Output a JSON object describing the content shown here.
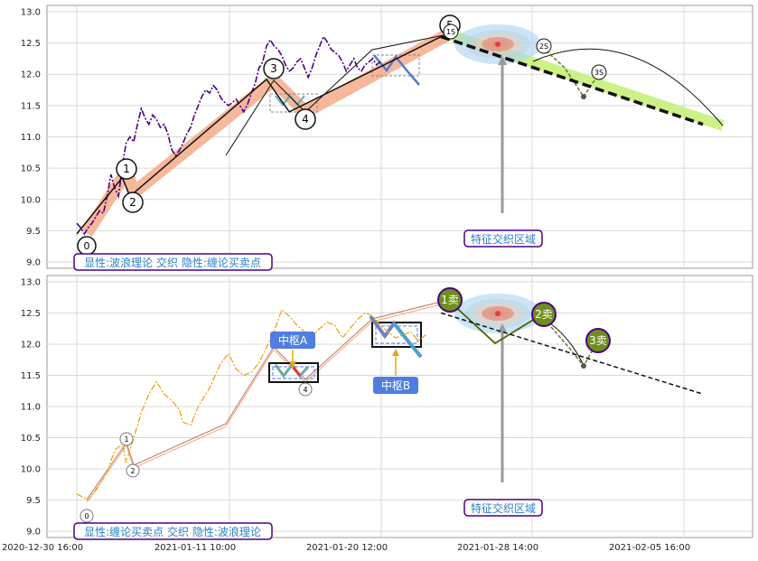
{
  "colors": {
    "grid": "#d8d8d8",
    "frame": "#999999",
    "price_top": "#4b0082",
    "price_bottom": "#e6a817",
    "wave_band": "#f4a582",
    "trend_band": "#c8f07a",
    "center_blue": "#a8d4f0",
    "center_mid": "#f0c0a0",
    "center_red": "#e04040",
    "note_border": "#4b0082",
    "note_text": "#2a7fc8",
    "zhongshu_fill": "#4f7de0",
    "sell_fill": "#6e8f1e",
    "label_purple": "#4b0082"
  },
  "x_axis": {
    "ticks": [
      "2020-12-30 16:00",
      "2021-01-11 10:00",
      "2021-01-20 12:00",
      "2021-01-28 14:00",
      "2021-02-05 16:00"
    ]
  },
  "chart_data": [
    {
      "type": "line",
      "ylim": [
        8.9,
        13.1
      ],
      "y_ticks": [
        9.0,
        9.5,
        10.0,
        10.5,
        11.0,
        11.5,
        12.0,
        12.5,
        13.0
      ],
      "legend_text": "显性:波浪理论 交织 隐性:缠论买卖点",
      "region_label": "特征交织区域",
      "series": [
        {
          "role": "price",
          "points": [
            [
              0,
              9.62
            ],
            [
              1,
              9.55
            ],
            [
              2,
              9.45
            ],
            [
              3,
              9.55
            ],
            [
              4,
              9.62
            ],
            [
              5,
              9.72
            ],
            [
              6,
              9.82
            ],
            [
              7,
              9.78
            ],
            [
              8,
              10.05
            ],
            [
              9,
              10.4
            ],
            [
              10,
              10.18
            ],
            [
              11,
              10.05
            ],
            [
              12,
              10.55
            ],
            [
              13,
              10.9
            ],
            [
              14,
              11.0
            ],
            [
              15,
              10.92
            ],
            [
              16,
              11.2
            ],
            [
              17,
              11.45
            ],
            [
              18,
              11.3
            ],
            [
              19,
              11.2
            ],
            [
              20,
              11.35
            ],
            [
              21,
              11.28
            ],
            [
              22,
              11.15
            ],
            [
              23,
              11.2
            ],
            [
              24,
              11.05
            ],
            [
              25,
              10.8
            ],
            [
              26,
              10.7
            ],
            [
              27,
              10.78
            ],
            [
              28,
              10.9
            ],
            [
              29,
              11.05
            ],
            [
              30,
              11.15
            ],
            [
              31,
              11.35
            ],
            [
              32,
              11.5
            ],
            [
              33,
              11.65
            ],
            [
              34,
              11.75
            ],
            [
              35,
              11.7
            ],
            [
              36,
              11.82
            ],
            [
              37,
              11.75
            ],
            [
              38,
              11.62
            ],
            [
              39,
              11.55
            ],
            [
              40,
              11.5
            ],
            [
              41,
              11.55
            ],
            [
              42,
              11.6
            ],
            [
              43,
              11.5
            ],
            [
              44,
              11.4
            ],
            [
              45,
              11.52
            ],
            [
              46,
              11.7
            ],
            [
              47,
              11.85
            ],
            [
              48,
              12.1
            ],
            [
              49,
              12.2
            ],
            [
              50,
              12.45
            ],
            [
              51,
              12.55
            ],
            [
              52,
              12.45
            ],
            [
              53,
              12.4
            ],
            [
              54,
              12.3
            ],
            [
              55,
              12.15
            ],
            [
              56,
              12.05
            ],
            [
              57,
              12.1
            ],
            [
              58,
              12.2
            ],
            [
              59,
              12.25
            ],
            [
              60,
              12.1
            ],
            [
              61,
              11.95
            ],
            [
              62,
              12.1
            ],
            [
              63,
              12.3
            ],
            [
              64,
              12.45
            ],
            [
              65,
              12.6
            ],
            [
              66,
              12.52
            ],
            [
              67,
              12.4
            ],
            [
              68,
              12.35
            ],
            [
              69,
              12.3
            ],
            [
              70,
              12.2
            ],
            [
              71,
              12.05
            ],
            [
              72,
              12.15
            ],
            [
              73,
              12.25
            ],
            [
              74,
              12.1
            ],
            [
              75,
              12.05
            ],
            [
              76,
              12.15
            ],
            [
              77,
              12.2
            ],
            [
              78,
              12.25
            ],
            [
              79,
              12.15
            ],
            [
              80,
              12.2
            ]
          ]
        },
        {
          "role": "wave",
          "points": [
            [
              0,
              9.45
            ],
            [
              12,
              10.35
            ],
            [
              14,
              10.05
            ],
            [
              50,
              11.92
            ],
            [
              56,
              11.4
            ],
            [
              96,
              12.6
            ]
          ]
        },
        {
          "role": "forecast",
          "points": [
            [
              96,
              12.6
            ],
            [
              165,
              11.2
            ]
          ]
        }
      ],
      "wave_labels": [
        "0",
        "1",
        "2",
        "3",
        "4",
        "5",
        "1S",
        "2S",
        "3S"
      ]
    },
    {
      "type": "line",
      "ylim": [
        8.9,
        13.1
      ],
      "y_ticks": [
        9.0,
        9.5,
        10.0,
        10.5,
        11.0,
        11.5,
        12.0,
        12.5,
        13.0
      ],
      "legend_text": "显性:缠论买卖点 交织 隐性:波浪理论",
      "region_label": "特征交织区域",
      "series": [
        {
          "role": "price",
          "points": [
            [
              0,
              9.6
            ],
            [
              3,
              9.5
            ],
            [
              5,
              9.65
            ],
            [
              8,
              9.95
            ],
            [
              10,
              10.3
            ],
            [
              12,
              10.4
            ],
            [
              13,
              10.1
            ],
            [
              15,
              10.5
            ],
            [
              17,
              10.9
            ],
            [
              19,
              11.2
            ],
            [
              21,
              11.4
            ],
            [
              23,
              11.2
            ],
            [
              25,
              11.1
            ],
            [
              27,
              10.95
            ],
            [
              28,
              10.75
            ],
            [
              30,
              10.7
            ],
            [
              32,
              11.0
            ],
            [
              35,
              11.3
            ],
            [
              38,
              11.7
            ],
            [
              40,
              11.85
            ],
            [
              42,
              11.6
            ],
            [
              44,
              11.5
            ],
            [
              46,
              11.55
            ],
            [
              48,
              11.7
            ],
            [
              50,
              11.95
            ],
            [
              52,
              12.2
            ],
            [
              54,
              12.55
            ],
            [
              56,
              12.45
            ],
            [
              58,
              12.3
            ],
            [
              60,
              12.2
            ],
            [
              62,
              12.1
            ],
            [
              64,
              12.25
            ],
            [
              66,
              12.35
            ],
            [
              68,
              12.3
            ],
            [
              70,
              12.1
            ],
            [
              72,
              12.25
            ],
            [
              74,
              12.4
            ],
            [
              76,
              12.5
            ],
            [
              78,
              12.45
            ],
            [
              80,
              12.3
            ],
            [
              84,
              12.1
            ],
            [
              88,
              12.2
            ],
            [
              90,
              12.05
            ],
            [
              92,
              12.15
            ]
          ]
        },
        {
          "role": "forecast",
          "points": [
            [
              96,
              12.5
            ],
            [
              165,
              11.2
            ]
          ]
        }
      ],
      "sell_labels": [
        "1卖",
        "2卖",
        "3卖"
      ],
      "zhongshu_labels": [
        "中枢A",
        "中枢B"
      ],
      "wave_labels": [
        "0",
        "1",
        "2",
        "4"
      ]
    }
  ]
}
